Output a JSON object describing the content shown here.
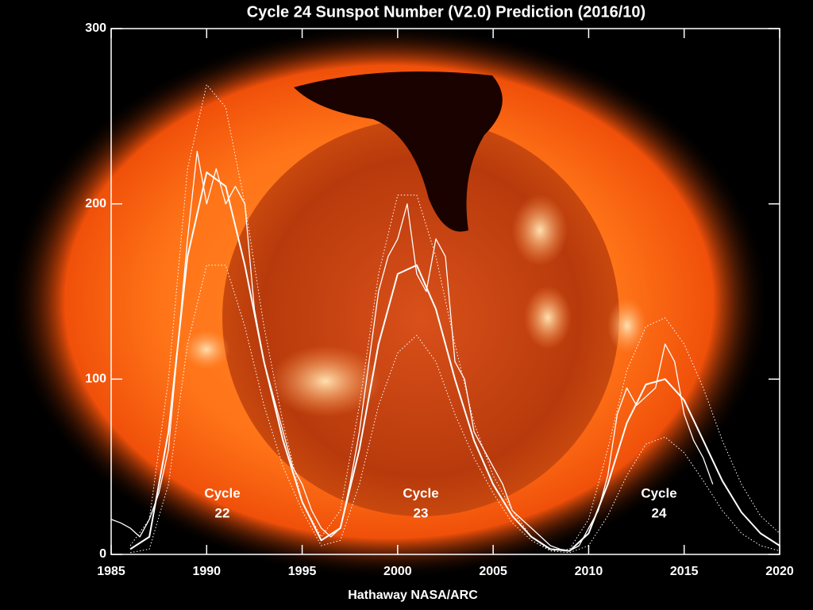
{
  "chart_data": {
    "type": "line",
    "title": "Cycle 24 Sunspot Number (V2.0) Prediction (2016/10)",
    "credit": "Hathaway  NASA/ARC",
    "xlim": [
      1985,
      2020
    ],
    "xticks": [
      1985,
      1990,
      1995,
      2000,
      2005,
      2010,
      2015,
      2020
    ],
    "ylim": [
      0,
      300
    ],
    "yticks": [
      0,
      100,
      200,
      300
    ],
    "annotations": [
      [
        "Cycle",
        "22"
      ],
      [
        "Cycle",
        "23"
      ],
      [
        "Cycle",
        "24"
      ]
    ],
    "series": [
      {
        "color": "#ffffff",
        "line_style": "solid",
        "width": 1.3,
        "x": [
          1985.0,
          1985.5,
          1986.0,
          1986.5,
          1987.0,
          1987.5,
          1988.0,
          1988.5,
          1989.0,
          1989.5,
          1990.0,
          1990.5,
          1991.0,
          1991.5,
          1992.0,
          1992.5,
          1993.0,
          1993.5,
          1994.0,
          1994.5,
          1995.0,
          1995.5,
          1996.0,
          1996.5,
          1997.0,
          1997.5,
          1998.0,
          1998.5,
          1999.0,
          1999.5,
          2000.0,
          2000.5,
          2001.0,
          2001.5,
          2002.0,
          2002.5,
          2003.0,
          2003.5,
          2004.0,
          2004.5,
          2005.0,
          2005.5,
          2006.0,
          2006.5,
          2007.0,
          2007.5,
          2008.0,
          2008.5,
          2009.0,
          2009.5,
          2010.0,
          2010.5,
          2011.0,
          2011.5,
          2012.0,
          2012.5,
          2013.0,
          2013.5,
          2014.0,
          2014.5,
          2015.0,
          2015.5,
          2016.0,
          2016.5
        ],
        "values": [
          20,
          18,
          15,
          10,
          20,
          35,
          60,
          120,
          180,
          230,
          200,
          220,
          200,
          210,
          200,
          140,
          110,
          90,
          70,
          50,
          40,
          25,
          15,
          10,
          15,
          40,
          70,
          110,
          150,
          170,
          180,
          200,
          160,
          150,
          180,
          170,
          110,
          100,
          70,
          60,
          50,
          40,
          25,
          20,
          15,
          10,
          5,
          3,
          2,
          5,
          15,
          25,
          45,
          80,
          95,
          85,
          90,
          95,
          120,
          110,
          80,
          65,
          55,
          40
        ]
      },
      {
        "color": "#ffffff",
        "line_style": "solid",
        "width": 2,
        "x": [
          1986,
          1987,
          1988,
          1989,
          1990,
          1991,
          1992,
          1993,
          1994,
          1995,
          1996,
          1997,
          1998,
          1999,
          2000,
          2001,
          2002,
          2003,
          2004,
          2005,
          2006,
          2007,
          2008,
          2009,
          2010,
          2011,
          2012,
          2013,
          2014,
          2015,
          2016,
          2017,
          2018,
          2019,
          2020
        ],
        "values": [
          3,
          10,
          70,
          170,
          218,
          210,
          165,
          110,
          65,
          30,
          8,
          15,
          60,
          120,
          160,
          165,
          140,
          100,
          65,
          40,
          22,
          10,
          3,
          2,
          12,
          40,
          75,
          97,
          100,
          88,
          65,
          42,
          24,
          12,
          5
        ]
      },
      {
        "color": "#ffffff",
        "line_style": "dotted",
        "width": 1,
        "x": [
          1986,
          1987,
          1988,
          1989,
          1990,
          1991,
          1992,
          1993,
          1994,
          1995,
          1996,
          1997,
          1998,
          1999,
          2000,
          2001,
          2002,
          2003,
          2004,
          2005,
          2006,
          2007,
          2008,
          2009,
          2010,
          2011,
          2012,
          2013,
          2014,
          2015,
          2016,
          2017,
          2018,
          2019,
          2020
        ],
        "values": [
          5,
          20,
          100,
          220,
          268,
          255,
          200,
          130,
          75,
          30,
          10,
          25,
          85,
          160,
          205,
          205,
          170,
          120,
          75,
          45,
          25,
          10,
          2,
          3,
          20,
          60,
          105,
          130,
          135,
          120,
          95,
          65,
          40,
          22,
          12
        ]
      },
      {
        "color": "#ffffff",
        "line_style": "dotted",
        "width": 1,
        "x": [
          1986,
          1987,
          1988,
          1989,
          1990,
          1991,
          1992,
          1993,
          1994,
          1995,
          1996,
          1997,
          1998,
          1999,
          2000,
          2001,
          2002,
          2003,
          2004,
          2005,
          2006,
          2007,
          2008,
          2009,
          2010,
          2011,
          2012,
          2013,
          2014,
          2015,
          2016,
          2017,
          2018,
          2019,
          2020
        ],
        "values": [
          1,
          3,
          40,
          120,
          165,
          165,
          130,
          85,
          50,
          25,
          5,
          8,
          40,
          85,
          115,
          125,
          110,
          80,
          55,
          35,
          18,
          8,
          2,
          1,
          5,
          22,
          45,
          63,
          67,
          58,
          42,
          25,
          12,
          5,
          2
        ]
      }
    ]
  }
}
